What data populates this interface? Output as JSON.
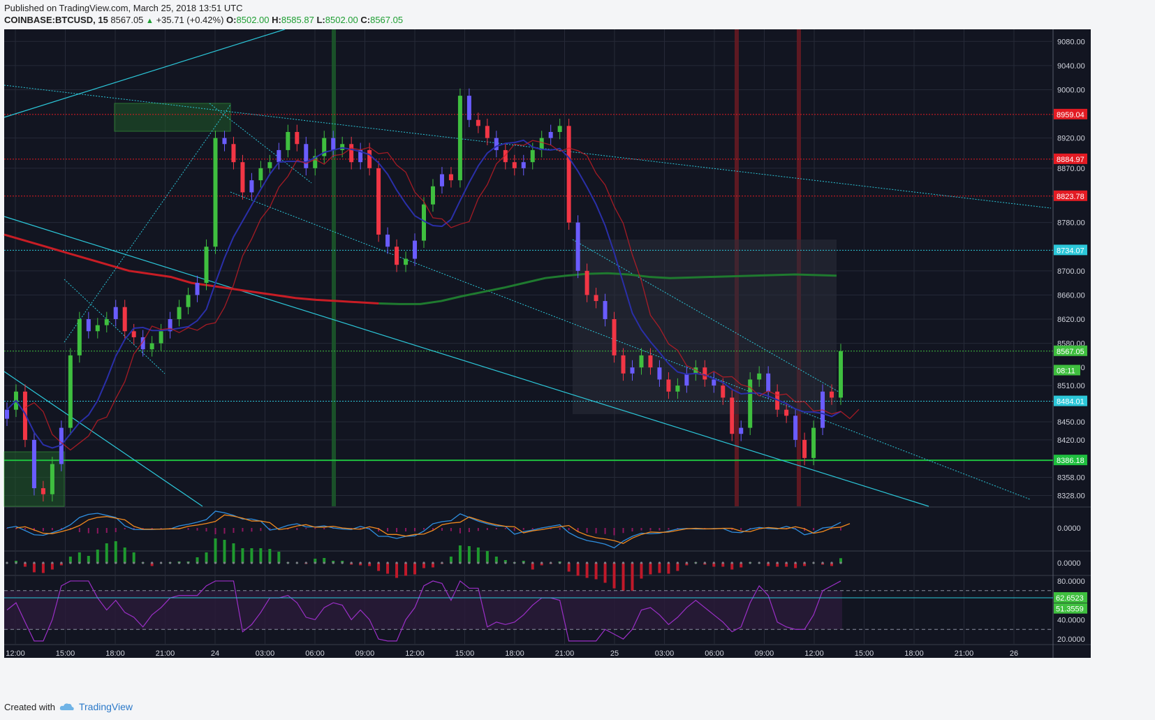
{
  "header": {
    "published": "Published on TradingView.com, March 25, 2018 13:51 UTC",
    "symbol": "COINBASE:BTCUSD, 15",
    "last": "8567.05",
    "change": "+35.71 (+0.42%)",
    "o_label": "O:",
    "o": "8502.00",
    "h_label": "H:",
    "h": "8585.87",
    "l_label": "L:",
    "l": "8502.00",
    "c_label": "C:",
    "c": "8567.05"
  },
  "footer": {
    "created": "Created with",
    "brand": "TradingView"
  },
  "colors": {
    "background": "#121521",
    "up": "#3fbf3f",
    "down": "#f23645",
    "blue_candle": "#6a5cff",
    "ema_red": "#c81d25",
    "ema_green": "#1f7a2f",
    "trend_cyan": "#2cc7d9",
    "rsi": "#9b2fc7",
    "macd": "#2f8fe0",
    "signal": "#f28a1e",
    "axis_text": "#d0d3dc"
  },
  "chart_data": {
    "type": "line",
    "title": "COINBASE:BTCUSD, 15",
    "x_ticks": [
      "12:00",
      "15:00",
      "18:00",
      "21:00",
      "24",
      "03:00",
      "06:00",
      "09:00",
      "12:00",
      "15:00",
      "18:00",
      "21:00",
      "25",
      "03:00",
      "06:00",
      "09:00",
      "12:00",
      "15:00",
      "18:00",
      "21:00",
      "26"
    ],
    "y_ticks": [
      "9080.00",
      "9040.00",
      "9000.00",
      "8920.00",
      "8870.00",
      "8780.00",
      "8700.00",
      "8660.00",
      "8620.00",
      "8580.00",
      "8540.00",
      "8510.00",
      "8450.00",
      "8420.00",
      "8358.00",
      "8328.00"
    ],
    "ylim": [
      8310,
      9100
    ],
    "price_labels": [
      {
        "text": "8959.04",
        "value": 8959.04,
        "color": "#e31b23"
      },
      {
        "text": "8884.97",
        "value": 8884.97,
        "color": "#e31b23"
      },
      {
        "text": "8823.78",
        "value": 8823.78,
        "color": "#e31b23"
      },
      {
        "text": "8734.07",
        "value": 8734.07,
        "color": "#2cc7d9"
      },
      {
        "text": "8567.05",
        "value": 8567.05,
        "color": "#3fbf3f"
      },
      {
        "text": "08:11",
        "value": 8535,
        "color": "#3fbf3f"
      },
      {
        "text": "8484.01",
        "value": 8484.01,
        "color": "#2cc7d9"
      },
      {
        "text": "8386.18",
        "value": 8386.18,
        "color": "#1fbf3f"
      }
    ],
    "close_series": [
      8470,
      8500,
      8420,
      8340,
      8330,
      8380,
      8440,
      8560,
      8620,
      8600,
      8610,
      8620,
      8640,
      8600,
      8590,
      8570,
      8580,
      8600,
      8620,
      8640,
      8660,
      8680,
      8740,
      8920,
      8910,
      8880,
      8830,
      8850,
      8870,
      8880,
      8900,
      8930,
      8910,
      8870,
      8890,
      8920,
      8900,
      8910,
      8880,
      8900,
      8870,
      8760,
      8740,
      8710,
      8720,
      8750,
      8810,
      8840,
      8860,
      8850,
      8990,
      8950,
      8940,
      8920,
      8900,
      8880,
      8870,
      8880,
      8900,
      8920,
      8930,
      8940,
      8780,
      8700,
      8660,
      8650,
      8620,
      8560,
      8530,
      8540,
      8560,
      8540,
      8520,
      8500,
      8510,
      8530,
      8540,
      8520,
      8510,
      8490,
      8430,
      8440,
      8520,
      8530,
      8500,
      8470,
      8460,
      8420,
      8390,
      8440,
      8500,
      8490,
      8567
    ],
    "ema_long": [
      8760,
      8750,
      8740,
      8730,
      8720,
      8710,
      8700,
      8695,
      8690,
      8680,
      8675,
      8670,
      8665,
      8660,
      8655,
      8652,
      8650,
      8648,
      8646,
      8645,
      8645,
      8650,
      8658,
      8665,
      8672,
      8680,
      8688,
      8692,
      8695,
      8696,
      8694,
      8690,
      8688,
      8689,
      8690,
      8691,
      8692,
      8693,
      8694,
      8693,
      8692
    ],
    "ema_long_note_up_from_index": 18,
    "macd": {
      "ylabel": "0.0000"
    },
    "squeeze": {
      "ylabel": "0.0000"
    },
    "rsi": {
      "ticks": [
        "80.0000",
        "40.0000",
        "20.0000"
      ],
      "value": "62.6523",
      "signal": "51.3559",
      "ylim": [
        15,
        85
      ]
    }
  }
}
